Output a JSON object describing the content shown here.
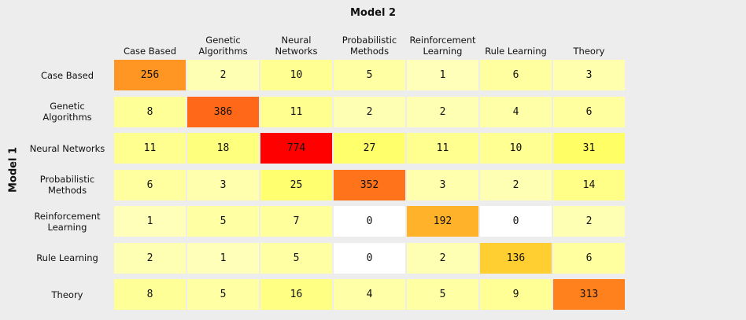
{
  "chart_data": {
    "type": "heatmap",
    "title": "Model 2",
    "xlabel": "Model 2",
    "ylabel": "Model 1",
    "columns": [
      "Case Based",
      "Genetic\nAlgorithms",
      "Neural Networks",
      "Probabilistic\nMethods",
      "Reinforcement\nLearning",
      "Rule Learning",
      "Theory"
    ],
    "rows": [
      "Case Based",
      "Genetic\nAlgorithms",
      "Neural Networks",
      "Probabilistic\nMethods",
      "Reinforcement\nLearning",
      "Rule Learning",
      "Theory"
    ],
    "values": [
      [
        256,
        2,
        10,
        5,
        1,
        6,
        3
      ],
      [
        8,
        386,
        11,
        2,
        2,
        4,
        6
      ],
      [
        11,
        18,
        774,
        27,
        11,
        10,
        31
      ],
      [
        6,
        3,
        25,
        352,
        3,
        2,
        14
      ],
      [
        1,
        5,
        7,
        0,
        192,
        0,
        2
      ],
      [
        2,
        1,
        5,
        0,
        2,
        136,
        6
      ],
      [
        8,
        5,
        16,
        4,
        5,
        9,
        313
      ]
    ],
    "colorscale": [
      "#ffffff",
      "#ffff33",
      "#ff0000"
    ]
  }
}
